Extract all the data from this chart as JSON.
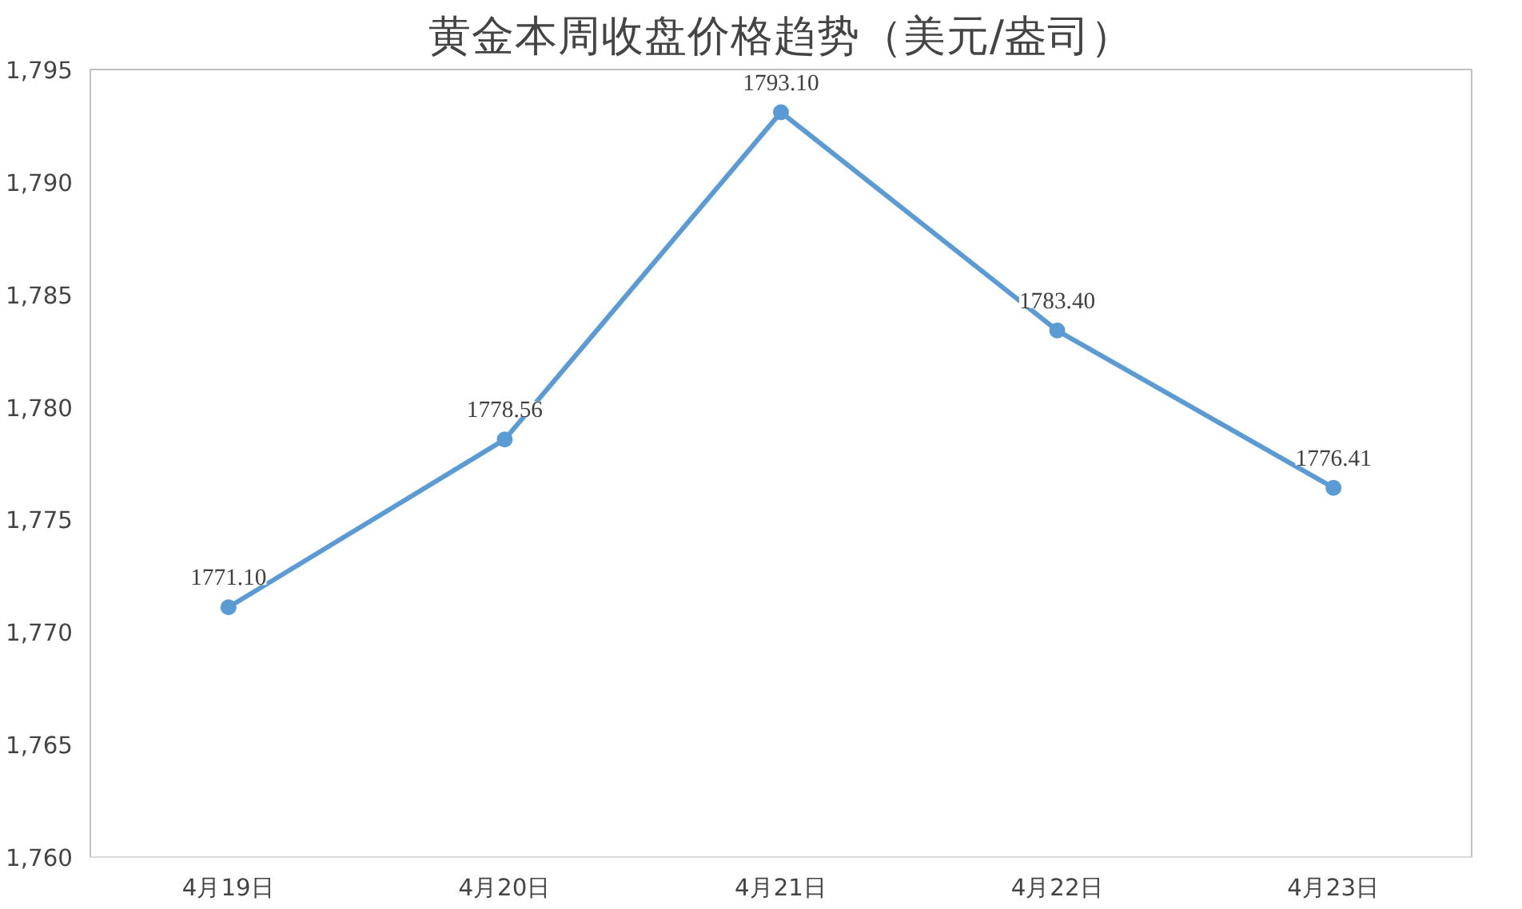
{
  "chart_data": {
    "type": "line",
    "title": "黄金本周收盘价格趋势（美元/盎司）",
    "categories": [
      "4月19日",
      "4月20日",
      "4月21日",
      "4月22日",
      "4月23日"
    ],
    "series": [
      {
        "color": "#5b9bd5",
        "values": [
          1771.1,
          1778.56,
          1793.1,
          1783.4,
          1776.41
        ]
      }
    ],
    "value_labels": [
      "1771.10",
      "1778.56",
      "1793.10",
      "1783.40",
      "1776.41"
    ],
    "ylim": [
      1760,
      1795
    ],
    "yticks": [
      {
        "value": 1760,
        "label": "1,760"
      },
      {
        "value": 1765,
        "label": "1,765"
      },
      {
        "value": 1770,
        "label": "1,770"
      },
      {
        "value": 1775,
        "label": "1,775"
      },
      {
        "value": 1780,
        "label": "1,780"
      },
      {
        "value": 1785,
        "label": "1,785"
      },
      {
        "value": 1790,
        "label": "1,790"
      },
      {
        "value": 1795,
        "label": "1,795"
      }
    ],
    "grid": false,
    "marker": "circle",
    "line_style": "solid"
  }
}
